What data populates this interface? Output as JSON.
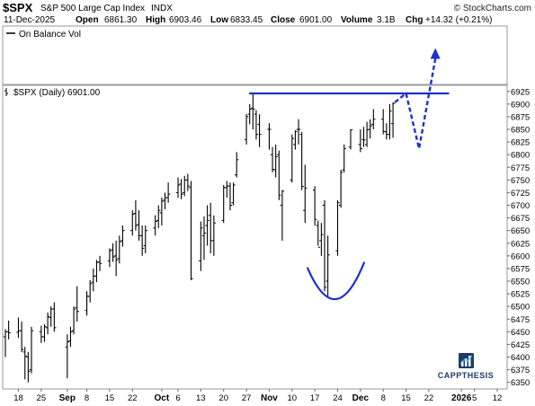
{
  "header": {
    "symbol": "$SPX",
    "name": "S&P 500 Large Cap Index",
    "exchange": "INDX",
    "watermark": "© StockCharts.com",
    "date": "11-Dec-2025",
    "open_label": "Open",
    "open_value": "6861.30",
    "high_label": "High",
    "high_value": "6903.46",
    "low_label": "Low",
    "low_value": "6833.45",
    "close_label": "Close",
    "close_value": "6901.00",
    "volume_label": "Volume",
    "volume_value": "3.1B",
    "chg_label": "Chg",
    "chg_value": "+14.32 (+0.21%)"
  },
  "obv_panel": {
    "legend": "On Balance Vol"
  },
  "price_panel": {
    "legend": "$SPX (Daily) 6901.00"
  },
  "logo": {
    "text": "CAPPTHESIS"
  },
  "colors": {
    "bars": "#000000",
    "annotation": "#1f2fd1",
    "grid": "#cfcfcf",
    "border": "#9a9a9a"
  },
  "chart_data": {
    "type": "ohlc",
    "title": "$SPX (Daily) 6901.00",
    "y_axis": {
      "side": "right",
      "ylim": [
        6337,
        6937
      ],
      "ticks": [
        6350,
        6375,
        6400,
        6425,
        6450,
        6475,
        6500,
        6525,
        6550,
        6575,
        6600,
        6625,
        6650,
        6675,
        6700,
        6725,
        6750,
        6775,
        6800,
        6825,
        6850,
        6875,
        6900,
        6925
      ]
    },
    "x_axis": {
      "range": [
        "2025-08-14",
        "2026-01-12"
      ],
      "ticks": [
        {
          "label": "18",
          "date": "2025-08-18"
        },
        {
          "label": "25",
          "date": "2025-08-25"
        },
        {
          "label": "Sep",
          "date": "2025-09-02",
          "bold": true
        },
        {
          "label": "8",
          "date": "2025-09-08"
        },
        {
          "label": "15",
          "date": "2025-09-15"
        },
        {
          "label": "22",
          "date": "2025-09-22"
        },
        {
          "label": "Oct",
          "date": "2025-10-01",
          "bold": true
        },
        {
          "label": "6",
          "date": "2025-10-06"
        },
        {
          "label": "13",
          "date": "2025-10-13"
        },
        {
          "label": "20",
          "date": "2025-10-20"
        },
        {
          "label": "27",
          "date": "2025-10-27"
        },
        {
          "label": "Nov",
          "date": "2025-11-03",
          "bold": true
        },
        {
          "label": "10",
          "date": "2025-11-10"
        },
        {
          "label": "17",
          "date": "2025-11-17"
        },
        {
          "label": "24",
          "date": "2025-11-24"
        },
        {
          "label": "Dec",
          "date": "2025-12-01",
          "bold": true
        },
        {
          "label": "8",
          "date": "2025-12-08"
        },
        {
          "label": "15",
          "date": "2025-12-15"
        },
        {
          "label": "22",
          "date": "2025-12-22"
        },
        {
          "label": "2026",
          "date": "2026-01-01",
          "bold": true
        },
        {
          "label": "5",
          "date": "2026-01-05"
        },
        {
          "label": "12",
          "date": "2026-01-12"
        }
      ]
    },
    "bars": [
      {
        "date": "2025-08-14",
        "o": 6440,
        "h": 6455,
        "l": 6400,
        "c": 6450
      },
      {
        "date": "2025-08-15",
        "o": 6450,
        "h": 6472,
        "l": 6435,
        "c": 6448
      },
      {
        "date": "2025-08-18",
        "o": 6449,
        "h": 6478,
        "l": 6438,
        "c": 6452
      },
      {
        "date": "2025-08-19",
        "o": 6452,
        "h": 6470,
        "l": 6410,
        "c": 6415
      },
      {
        "date": "2025-08-20",
        "o": 6410,
        "h": 6420,
        "l": 6356,
        "c": 6402
      },
      {
        "date": "2025-08-21",
        "o": 6400,
        "h": 6410,
        "l": 6350,
        "c": 6372
      },
      {
        "date": "2025-08-22",
        "o": 6375,
        "h": 6460,
        "l": 6368,
        "c": 6452
      },
      {
        "date": "2025-08-25",
        "o": 6450,
        "h": 6462,
        "l": 6428,
        "c": 6440
      },
      {
        "date": "2025-08-26",
        "o": 6440,
        "h": 6465,
        "l": 6430,
        "c": 6460
      },
      {
        "date": "2025-08-27",
        "o": 6458,
        "h": 6488,
        "l": 6445,
        "c": 6480
      },
      {
        "date": "2025-08-28",
        "o": 6478,
        "h": 6500,
        "l": 6460,
        "c": 6495
      },
      {
        "date": "2025-08-29",
        "o": 6495,
        "h": 6508,
        "l": 6450,
        "c": 6458
      },
      {
        "date": "2025-09-02",
        "o": 6420,
        "h": 6445,
        "l": 6358,
        "c": 6430
      },
      {
        "date": "2025-09-03",
        "o": 6432,
        "h": 6460,
        "l": 6420,
        "c": 6450
      },
      {
        "date": "2025-09-04",
        "o": 6452,
        "h": 6500,
        "l": 6445,
        "c": 6495
      },
      {
        "date": "2025-09-05",
        "o": 6498,
        "h": 6540,
        "l": 6470,
        "c": 6490
      },
      {
        "date": "2025-09-08",
        "o": 6492,
        "h": 6530,
        "l": 6482,
        "c": 6520
      },
      {
        "date": "2025-09-09",
        "o": 6520,
        "h": 6552,
        "l": 6508,
        "c": 6545
      },
      {
        "date": "2025-09-10",
        "o": 6548,
        "h": 6575,
        "l": 6530,
        "c": 6560
      },
      {
        "date": "2025-09-11",
        "o": 6560,
        "h": 6592,
        "l": 6548,
        "c": 6587
      },
      {
        "date": "2025-09-12",
        "o": 6588,
        "h": 6600,
        "l": 6570,
        "c": 6585
      },
      {
        "date": "2025-09-15",
        "o": 6590,
        "h": 6615,
        "l": 6578,
        "c": 6610
      },
      {
        "date": "2025-09-16",
        "o": 6612,
        "h": 6625,
        "l": 6588,
        "c": 6598
      },
      {
        "date": "2025-09-17",
        "o": 6600,
        "h": 6630,
        "l": 6560,
        "c": 6592
      },
      {
        "date": "2025-09-18",
        "o": 6595,
        "h": 6640,
        "l": 6585,
        "c": 6628
      },
      {
        "date": "2025-09-19",
        "o": 6630,
        "h": 6660,
        "l": 6618,
        "c": 6650
      },
      {
        "date": "2025-09-22",
        "o": 6650,
        "h": 6690,
        "l": 6640,
        "c": 6682
      },
      {
        "date": "2025-09-23",
        "o": 6684,
        "h": 6710,
        "l": 6650,
        "c": 6660
      },
      {
        "date": "2025-09-24",
        "o": 6662,
        "h": 6690,
        "l": 6630,
        "c": 6640
      },
      {
        "date": "2025-09-25",
        "o": 6640,
        "h": 6660,
        "l": 6600,
        "c": 6615
      },
      {
        "date": "2025-09-26",
        "o": 6620,
        "h": 6660,
        "l": 6605,
        "c": 6650
      },
      {
        "date": "2025-09-29",
        "o": 6655,
        "h": 6680,
        "l": 6640,
        "c": 6668
      },
      {
        "date": "2025-09-30",
        "o": 6670,
        "h": 6700,
        "l": 6655,
        "c": 6690
      },
      {
        "date": "2025-10-01",
        "o": 6685,
        "h": 6715,
        "l": 6660,
        "c": 6708
      },
      {
        "date": "2025-10-02",
        "o": 6710,
        "h": 6725,
        "l": 6692,
        "c": 6715
      },
      {
        "date": "2025-10-03",
        "o": 6715,
        "h": 6745,
        "l": 6705,
        "c": 6722
      },
      {
        "date": "2025-10-06",
        "o": 6725,
        "h": 6755,
        "l": 6715,
        "c": 6740
      },
      {
        "date": "2025-10-07",
        "o": 6742,
        "h": 6752,
        "l": 6712,
        "c": 6722
      },
      {
        "date": "2025-10-08",
        "o": 6725,
        "h": 6758,
        "l": 6718,
        "c": 6750
      },
      {
        "date": "2025-10-09",
        "o": 6750,
        "h": 6762,
        "l": 6728,
        "c": 6738
      },
      {
        "date": "2025-10-10",
        "o": 6735,
        "h": 6748,
        "l": 6552,
        "c": 6555
      },
      {
        "date": "2025-10-13",
        "o": 6590,
        "h": 6668,
        "l": 6570,
        "c": 6655
      },
      {
        "date": "2025-10-14",
        "o": 6640,
        "h": 6678,
        "l": 6592,
        "c": 6645
      },
      {
        "date": "2025-10-15",
        "o": 6660,
        "h": 6700,
        "l": 6620,
        "c": 6670
      },
      {
        "date": "2025-10-16",
        "o": 6680,
        "h": 6705,
        "l": 6605,
        "c": 6630
      },
      {
        "date": "2025-10-17",
        "o": 6630,
        "h": 6680,
        "l": 6600,
        "c": 6665
      },
      {
        "date": "2025-10-20",
        "o": 6670,
        "h": 6740,
        "l": 6665,
        "c": 6735
      },
      {
        "date": "2025-10-21",
        "o": 6735,
        "h": 6748,
        "l": 6715,
        "c": 6738
      },
      {
        "date": "2025-10-22",
        "o": 6738,
        "h": 6745,
        "l": 6690,
        "c": 6700
      },
      {
        "date": "2025-10-23",
        "o": 6705,
        "h": 6745,
        "l": 6700,
        "c": 6740
      },
      {
        "date": "2025-10-24",
        "o": 6760,
        "h": 6805,
        "l": 6755,
        "c": 6790
      },
      {
        "date": "2025-10-27",
        "o": 6830,
        "h": 6880,
        "l": 6820,
        "c": 6875
      },
      {
        "date": "2025-10-28",
        "o": 6880,
        "h": 6900,
        "l": 6860,
        "c": 6890
      },
      {
        "date": "2025-10-29",
        "o": 6892,
        "h": 6920,
        "l": 6850,
        "c": 6890
      },
      {
        "date": "2025-10-30",
        "o": 6880,
        "h": 6888,
        "l": 6830,
        "c": 6840
      },
      {
        "date": "2025-10-31",
        "o": 6860,
        "h": 6880,
        "l": 6815,
        "c": 6840
      },
      {
        "date": "2025-11-03",
        "o": 6850,
        "h": 6862,
        "l": 6810,
        "c": 6850
      },
      {
        "date": "2025-11-04",
        "o": 6800,
        "h": 6815,
        "l": 6765,
        "c": 6771
      },
      {
        "date": "2025-11-05",
        "o": 6770,
        "h": 6820,
        "l": 6755,
        "c": 6796
      },
      {
        "date": "2025-11-06",
        "o": 6800,
        "h": 6808,
        "l": 6710,
        "c": 6720
      },
      {
        "date": "2025-11-07",
        "o": 6700,
        "h": 6730,
        "l": 6630,
        "c": 6728
      },
      {
        "date": "2025-11-10",
        "o": 6750,
        "h": 6840,
        "l": 6745,
        "c": 6832
      },
      {
        "date": "2025-11-11",
        "o": 6820,
        "h": 6848,
        "l": 6810,
        "c": 6846
      },
      {
        "date": "2025-11-12",
        "o": 6850,
        "h": 6870,
        "l": 6820,
        "c": 6850
      },
      {
        "date": "2025-11-13",
        "o": 6840,
        "h": 6845,
        "l": 6730,
        "c": 6737
      },
      {
        "date": "2025-11-14",
        "o": 6690,
        "h": 6780,
        "l": 6665,
        "c": 6734
      },
      {
        "date": "2025-11-17",
        "o": 6730,
        "h": 6738,
        "l": 6660,
        "c": 6672
      },
      {
        "date": "2025-11-18",
        "o": 6660,
        "h": 6670,
        "l": 6620,
        "c": 6617
      },
      {
        "date": "2025-11-19",
        "o": 6630,
        "h": 6665,
        "l": 6600,
        "c": 6642
      },
      {
        "date": "2025-11-20",
        "o": 6700,
        "h": 6710,
        "l": 6530,
        "c": 6538
      },
      {
        "date": "2025-11-21",
        "o": 6550,
        "h": 6640,
        "l": 6520,
        "c": 6602
      },
      {
        "date": "2025-11-24",
        "o": 6610,
        "h": 6710,
        "l": 6600,
        "c": 6705
      },
      {
        "date": "2025-11-25",
        "o": 6700,
        "h": 6770,
        "l": 6695,
        "c": 6765
      },
      {
        "date": "2025-11-26",
        "o": 6770,
        "h": 6820,
        "l": 6765,
        "c": 6812
      },
      {
        "date": "2025-11-28",
        "o": 6815,
        "h": 6850,
        "l": 6810,
        "c": 6849
      },
      {
        "date": "2025-12-01",
        "o": 6820,
        "h": 6850,
        "l": 6805,
        "c": 6812
      },
      {
        "date": "2025-12-02",
        "o": 6830,
        "h": 6855,
        "l": 6815,
        "c": 6829
      },
      {
        "date": "2025-12-03",
        "o": 6820,
        "h": 6865,
        "l": 6815,
        "c": 6849
      },
      {
        "date": "2025-12-04",
        "o": 6850,
        "h": 6870,
        "l": 6832,
        "c": 6857
      },
      {
        "date": "2025-12-05",
        "o": 6860,
        "h": 6890,
        "l": 6850,
        "c": 6870
      },
      {
        "date": "2025-12-08",
        "o": 6870,
        "h": 6890,
        "l": 6840,
        "c": 6846
      },
      {
        "date": "2025-12-09",
        "o": 6845,
        "h": 6862,
        "l": 6830,
        "c": 6840
      },
      {
        "date": "2025-12-10",
        "o": 6840,
        "h": 6900,
        "l": 6830,
        "c": 6886
      },
      {
        "date": "2025-12-11",
        "o": 6861.3,
        "h": 6903.46,
        "l": 6833.45,
        "c": 6901
      }
    ],
    "annotations": {
      "resistance_line": {
        "level": 6921,
        "from": "2025-10-27",
        "to": "2025-12-26"
      },
      "rounded_bottom": {
        "from": "2025-11-17",
        "to": "2025-12-01",
        "top": 6565,
        "bottom": 6505
      },
      "projection_path": [
        {
          "date": "2025-12-15",
          "price": 6921
        },
        {
          "date": "2025-12-19",
          "price": 6812
        },
        {
          "date": "2025-12-24",
          "price": 7000
        }
      ]
    }
  }
}
